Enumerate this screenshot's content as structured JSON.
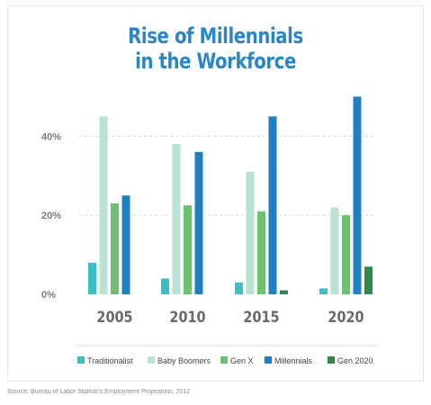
{
  "title_line1": "Rise of Millennials",
  "title_line2": "in the Workforce",
  "source": "Source: Bureau of Labor Statistics Employment Projections, 2012",
  "chart_data": {
    "type": "bar",
    "title": "Rise of Millennials in the Workforce",
    "categories": [
      "2005",
      "2010",
      "2015",
      "2020"
    ],
    "y_ticks": [
      "0%",
      "20%",
      "40%"
    ],
    "y_tick_values": [
      0,
      20,
      40
    ],
    "ylim": [
      0,
      51
    ],
    "grid": "dashed horizontal at 20% and 40%",
    "legend_position": "bottom",
    "series": [
      {
        "name": "Traditionalist",
        "color": "#3bbfc7",
        "values": [
          8,
          4,
          3,
          1.5
        ]
      },
      {
        "name": "Baby Boomers",
        "color": "#b9e2d2",
        "values": [
          45,
          38,
          31,
          22
        ]
      },
      {
        "name": "Gen X",
        "color": "#6cc06f",
        "values": [
          23,
          22.5,
          21,
          20
        ]
      },
      {
        "name": "Millennials",
        "color": "#1f7fc0",
        "values": [
          25,
          36,
          45,
          50
        ]
      },
      {
        "name": "Gen 2020",
        "color": "#2e8a4a",
        "values": [
          0,
          0,
          1,
          7
        ]
      }
    ]
  }
}
